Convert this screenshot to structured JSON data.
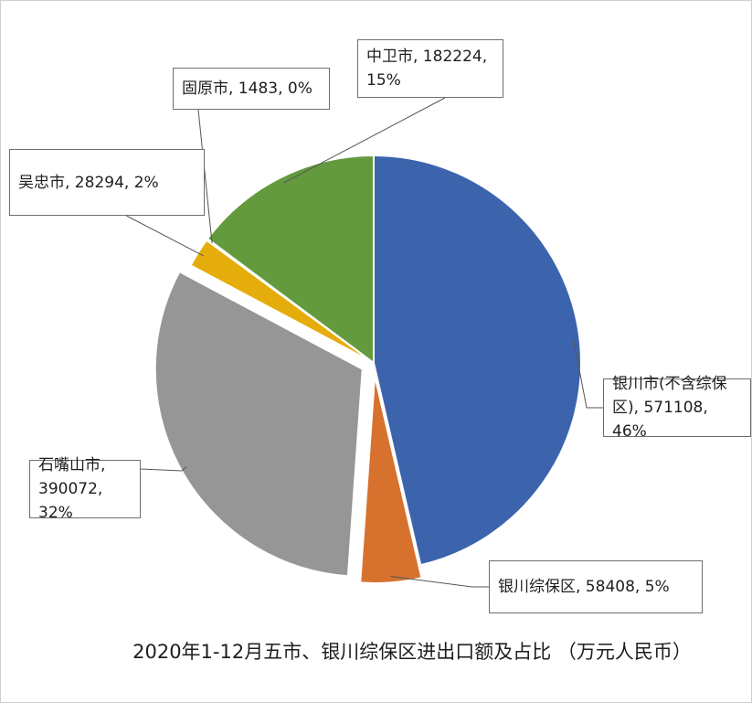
{
  "chart_data": {
    "type": "pie",
    "title": "2020年1-12月五市、银川综保区进出口额及占比 （万元人民币）",
    "unit": "万元人民币",
    "categories": [
      "银川市(不含综保区)",
      "银川综保区",
      "石嘴山市",
      "吴忠市",
      "固原市",
      "中卫市"
    ],
    "values": [
      571108,
      58408,
      390072,
      28294,
      1483,
      182224
    ],
    "percents": [
      "46%",
      "5%",
      "32%",
      "2%",
      "0%",
      "15%"
    ],
    "colors": [
      "#3c64ad",
      "#d7712e",
      "#969696",
      "#e5ad0b",
      "#2e77b8",
      "#639a3e"
    ],
    "exploded": [
      false,
      true,
      true,
      false,
      false,
      false
    ],
    "start_angle_deg": 0,
    "direction": "clockwise",
    "labels": [
      "银川市(不含综保区), 571108, 46%",
      "银川综保区, 58408, 5%",
      "石嘴山市, 390072, 32%",
      "吴忠市, 28294, 2%",
      "固原市, 1483, 0%",
      "中卫市, 182224, 15%"
    ]
  }
}
